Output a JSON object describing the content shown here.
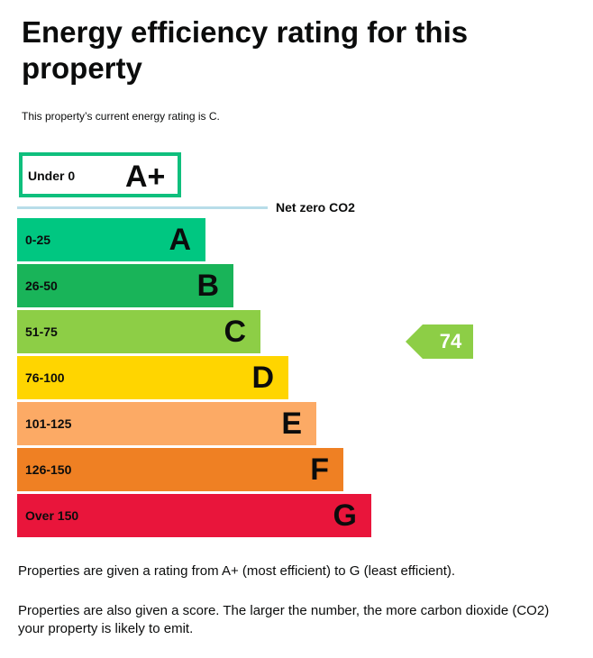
{
  "title": "Energy efficiency rating for this property",
  "current_rating_text": "This property’s current energy rating is C.",
  "aplus": {
    "range": "Under 0",
    "letter": "A+",
    "color": "#0fbf7d"
  },
  "net_zero_label": "Net zero CO2",
  "bands": [
    {
      "range": "0-25",
      "letter": "A",
      "color": "#00c781"
    },
    {
      "range": "26-50",
      "letter": "B",
      "color": "#19b459"
    },
    {
      "range": "51-75",
      "letter": "C",
      "color": "#8dce46"
    },
    {
      "range": "76-100",
      "letter": "D",
      "color": "#ffd500"
    },
    {
      "range": "101-125",
      "letter": "E",
      "color": "#fcaa65"
    },
    {
      "range": "126-150",
      "letter": "F",
      "color": "#ef8023"
    },
    {
      "range": "Over 150",
      "letter": "G",
      "color": "#e9153b"
    }
  ],
  "current_score": {
    "value": "74",
    "band": "C",
    "color": "#8dce46"
  },
  "notes": {
    "rating_range": "Properties are given a rating from A+ (most efficient) to G (least efficient).",
    "score": "Properties are also given a score. The larger the number, the more carbon dioxide (CO2) your property is likely to emit."
  }
}
